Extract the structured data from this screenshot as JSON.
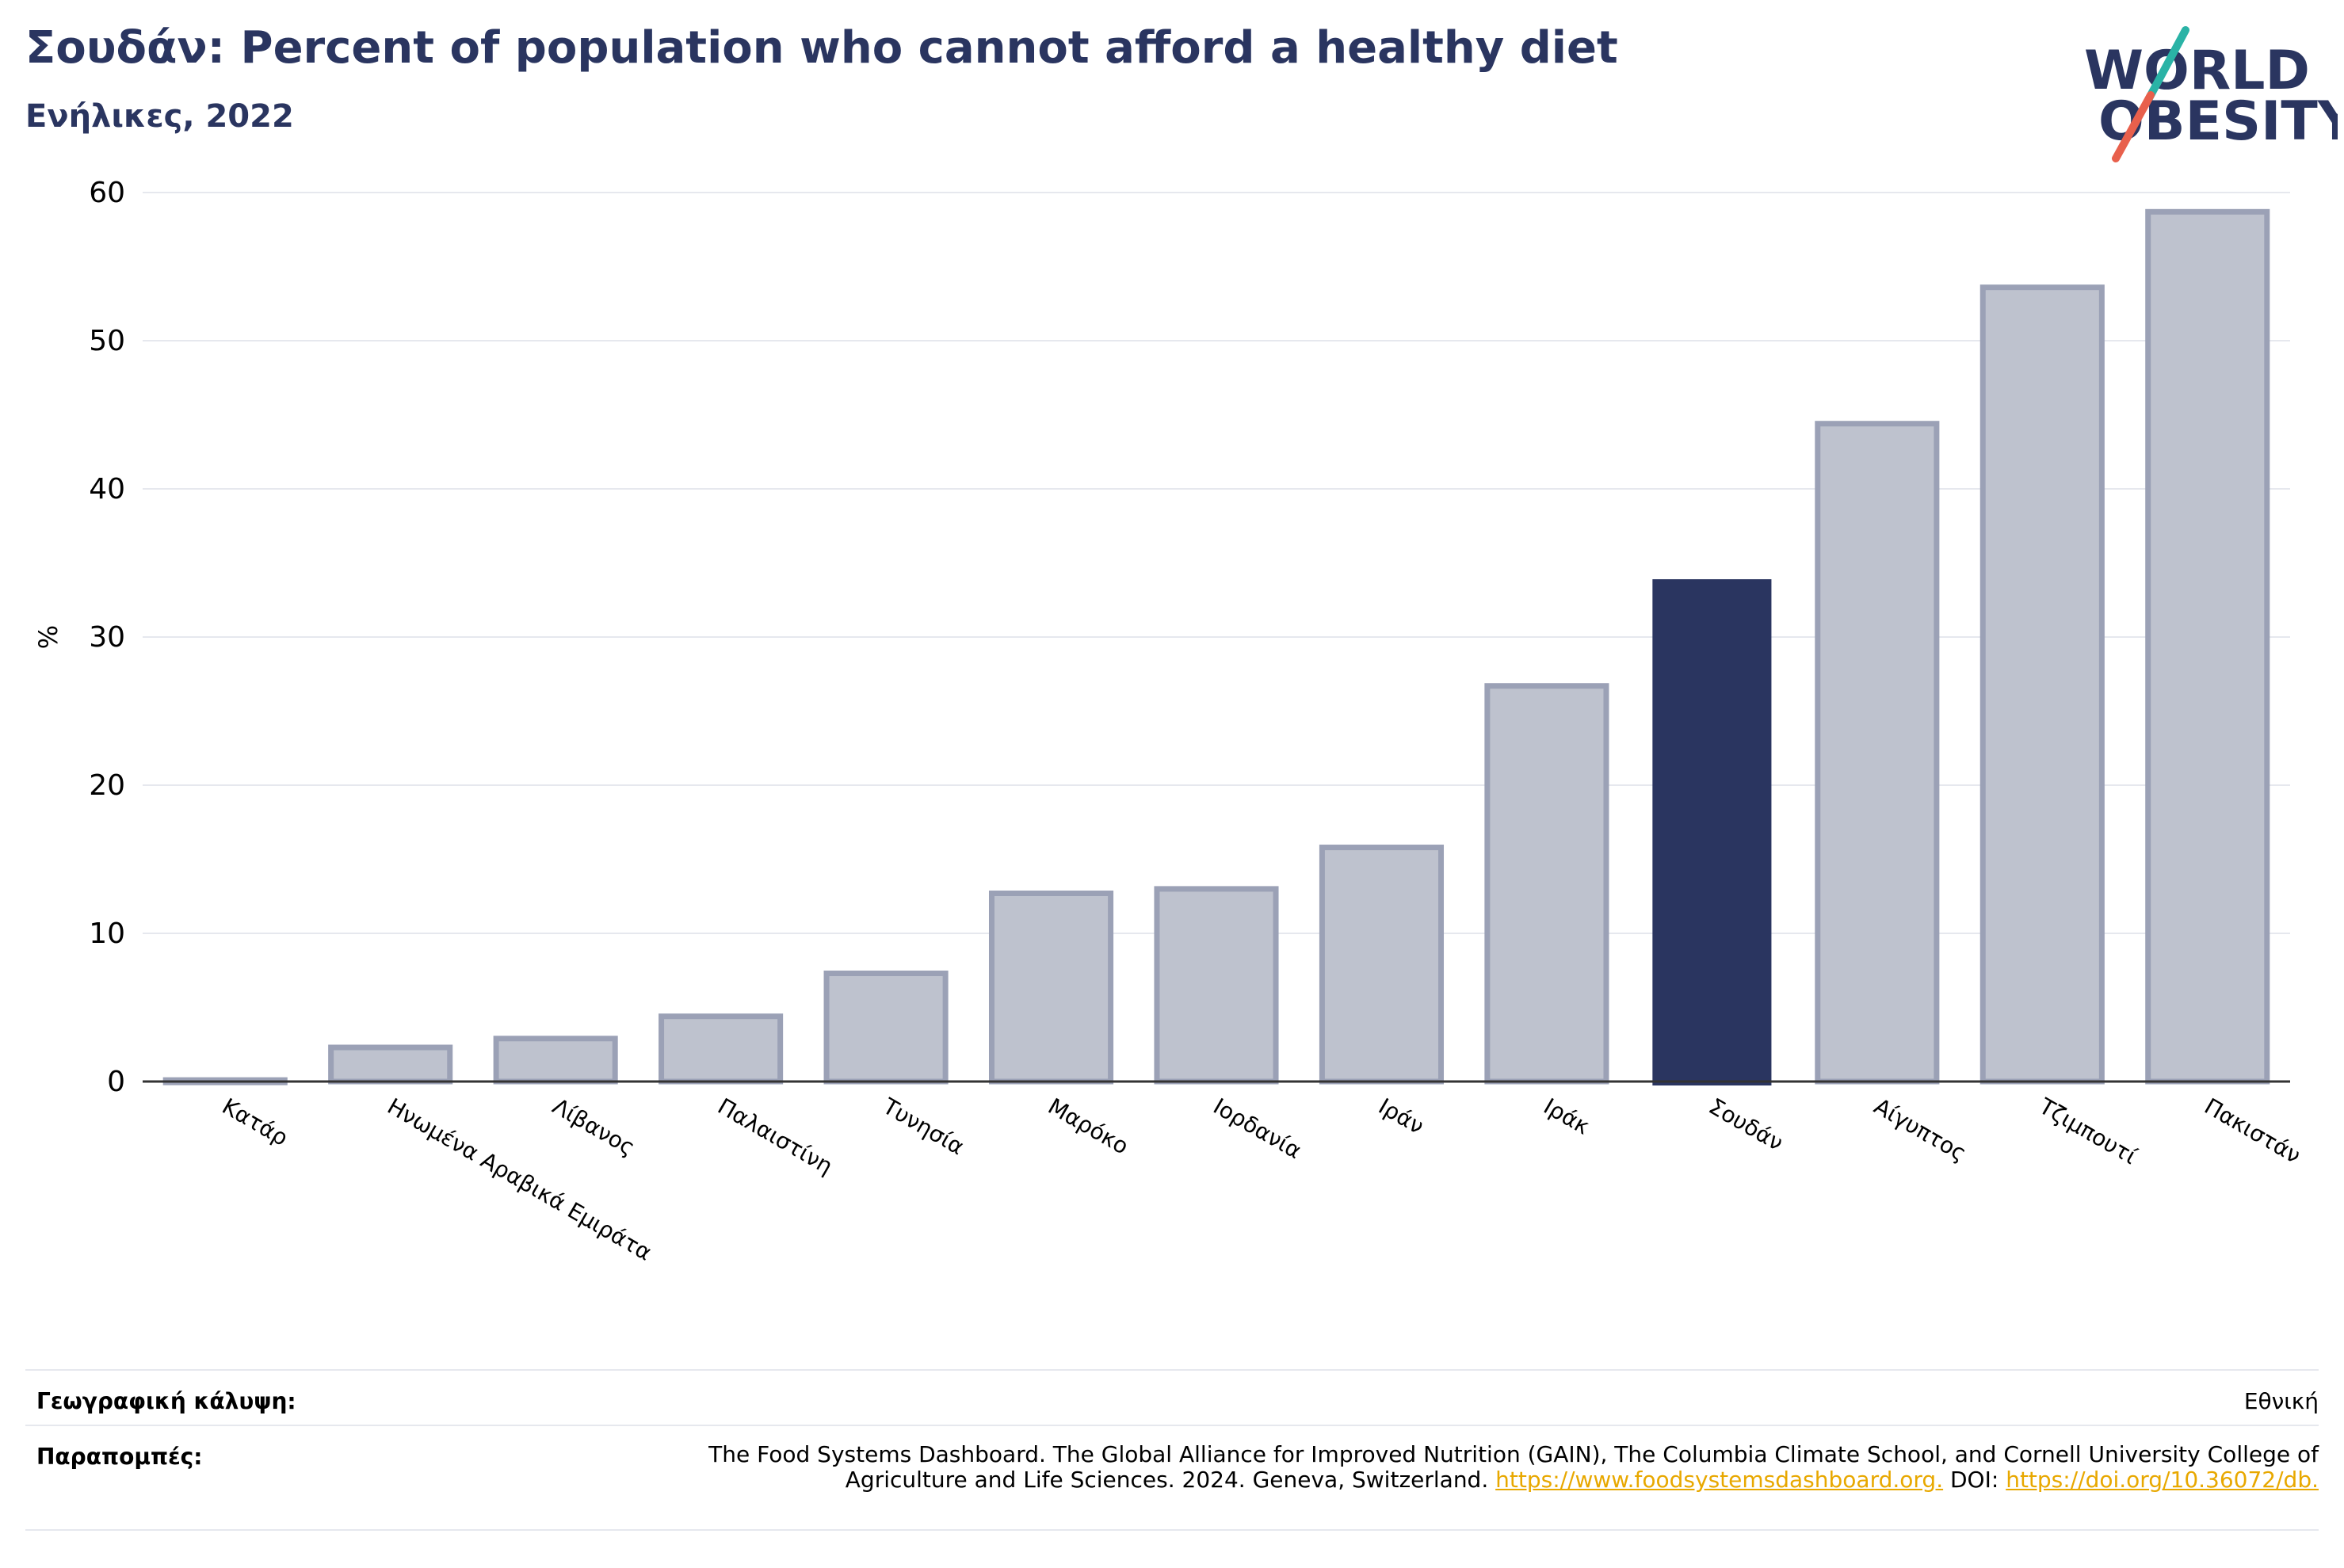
{
  "header": {
    "title": "Σουδάν: Percent of population who cannot afford a healthy diet",
    "subtitle": "Ενήλικες, 2022"
  },
  "logo": {
    "line1": "WORLD",
    "line2": "OBESITY"
  },
  "colors": {
    "highlight": "#2a3560",
    "bar_fill": "#bec2ce",
    "bar_stroke": "#9ba1b6",
    "grid": "#e6e8ee",
    "accent_teal": "#2ab3a6",
    "accent_red": "#e8604c",
    "link": "#e8a800"
  },
  "chart_data": {
    "type": "bar",
    "categories": [
      "Κατάρ",
      "Ηνωμένα Αραβικά Εμιράτα",
      "Λίβανος",
      "Παλαιστίνη",
      "Τυνησία",
      "Μαρόκο",
      "Ιορδανία",
      "Ιράν",
      "Ιράκ",
      "Σουδάν",
      "Αίγυπτος",
      "Τζιμπουτί",
      "Πακιστάν"
    ],
    "values": [
      0.1,
      2.3,
      2.9,
      4.4,
      7.3,
      12.7,
      13.0,
      15.8,
      26.7,
      33.9,
      44.4,
      53.6,
      58.7
    ],
    "highlight": "Σουδάν",
    "ylabel": "%",
    "yticks": [
      0,
      10,
      20,
      30,
      40,
      50,
      60
    ],
    "ylim": [
      0,
      60
    ],
    "grid": true
  },
  "footer": {
    "coverage_label": "Γεωγραφική κάλυψη:",
    "coverage_value": "Εθνική",
    "references_label": "Παραπομπές:",
    "references_text": "The Food Systems Dashboard. The Global Alliance for Improved Nutrition (GAIN), The Columbia Climate School, and Cornell University College of Agriculture and Life Sciences. 2024. Geneva, Switzerland.",
    "references_link1": "https://www.foodsystemsdashboard.org.",
    "references_doi_label": "DOI:",
    "references_link2": "https://doi.org/10.36072/db."
  }
}
